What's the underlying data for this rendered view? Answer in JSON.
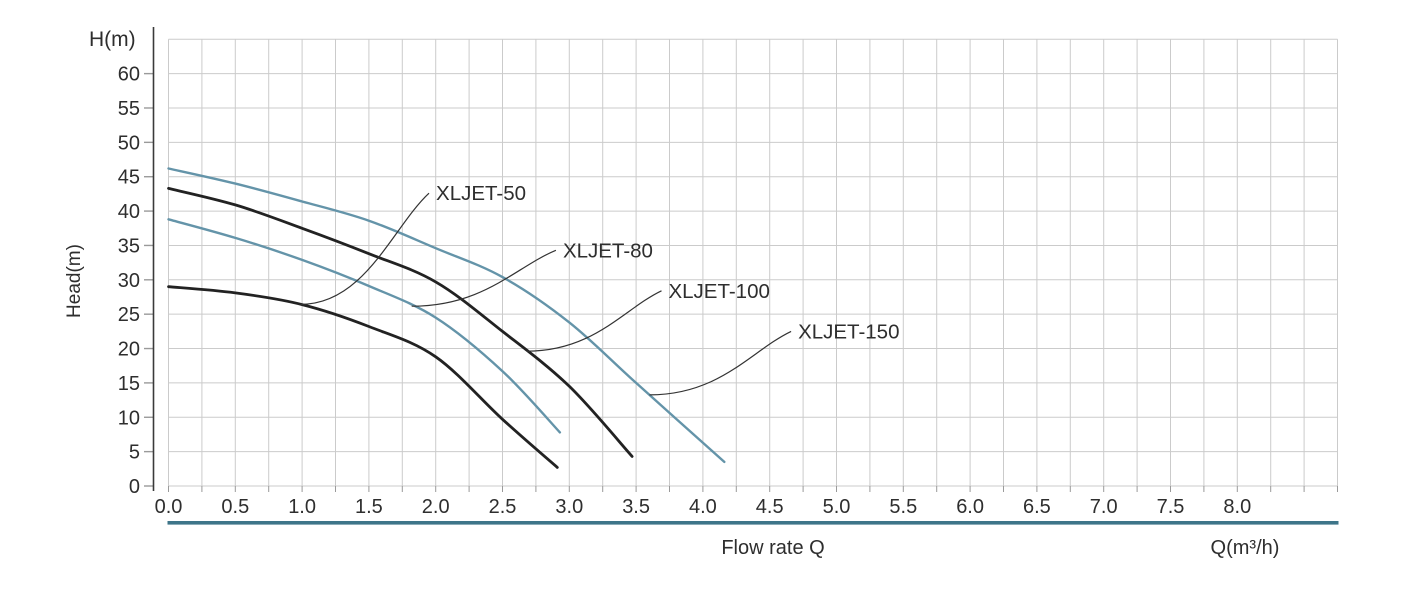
{
  "chart_data": {
    "type": "line",
    "title": "",
    "ylabel_top": "H(m)",
    "ylabel": "Head(m)",
    "xlabel": "Flow rate Q",
    "x_unit_label": "Q(m³/h)",
    "xlim": [
      0,
      8.75
    ],
    "ylim": [
      0,
      65
    ],
    "x_tick_labels": [
      "0.0",
      "0.5",
      "1.0",
      "1.5",
      "2.0",
      "2.5",
      "3.0",
      "3.5",
      "4.0",
      "4.5",
      "5.0",
      "5.5",
      "6.0",
      "6.5",
      "7.0",
      "7.5",
      "8.0"
    ],
    "y_tick_labels": [
      "0",
      "5",
      "10",
      "15",
      "20",
      "25",
      "30",
      "35",
      "40",
      "45",
      "50",
      "55",
      "60"
    ],
    "x_grid_step": 0.25,
    "y_grid_step": 5,
    "grid": true,
    "legend": "inline-labels-with-leader-lines",
    "colors": {
      "black_curve": "#222222",
      "teal_curve": "#6494a9",
      "underline": "#3e7589",
      "grid": "#cbcbcb",
      "axis": "#3a3a3a",
      "tick": "#9a9a9a",
      "leader": "#333333",
      "text": "#2e2e2e"
    },
    "series": [
      {
        "name": "XLJET-50",
        "color_key": "black_curve",
        "points": [
          [
            0,
            29.0
          ],
          [
            0.5,
            28.1
          ],
          [
            1.0,
            26.4
          ],
          [
            1.5,
            23.2
          ],
          [
            2.0,
            18.8
          ],
          [
            2.5,
            9.7
          ],
          [
            2.91,
            2.7
          ]
        ],
        "label_q": 1.95,
        "label_h": 42.6,
        "attach_q": 0.99
      },
      {
        "name": "XLJET-80",
        "color_key": "teal_curve",
        "points": [
          [
            0,
            38.8
          ],
          [
            0.5,
            36.1
          ],
          [
            1.0,
            32.9
          ],
          [
            1.5,
            29.1
          ],
          [
            2.0,
            24.5
          ],
          [
            2.5,
            16.7
          ],
          [
            2.93,
            7.8
          ]
        ],
        "label_q": 2.9,
        "label_h": 34.3,
        "attach_q": 1.82
      },
      {
        "name": "XLJET-100",
        "color_key": "black_curve",
        "points": [
          [
            0,
            43.3
          ],
          [
            0.5,
            40.9
          ],
          [
            1.0,
            37.5
          ],
          [
            1.5,
            33.8
          ],
          [
            2.0,
            29.7
          ],
          [
            2.5,
            22.5
          ],
          [
            3.0,
            14.5
          ],
          [
            3.47,
            4.3
          ]
        ],
        "label_q": 3.69,
        "label_h": 28.4,
        "attach_q": 2.68
      },
      {
        "name": "XLJET-150",
        "color_key": "teal_curve",
        "points": [
          [
            0,
            46.2
          ],
          [
            0.5,
            44.0
          ],
          [
            1.0,
            41.4
          ],
          [
            1.5,
            38.6
          ],
          [
            2.0,
            34.6
          ],
          [
            2.5,
            30.4
          ],
          [
            3.0,
            23.8
          ],
          [
            3.5,
            15.0
          ],
          [
            4.16,
            3.5
          ]
        ],
        "label_q": 4.66,
        "label_h": 22.5,
        "attach_q": 3.6
      }
    ]
  }
}
